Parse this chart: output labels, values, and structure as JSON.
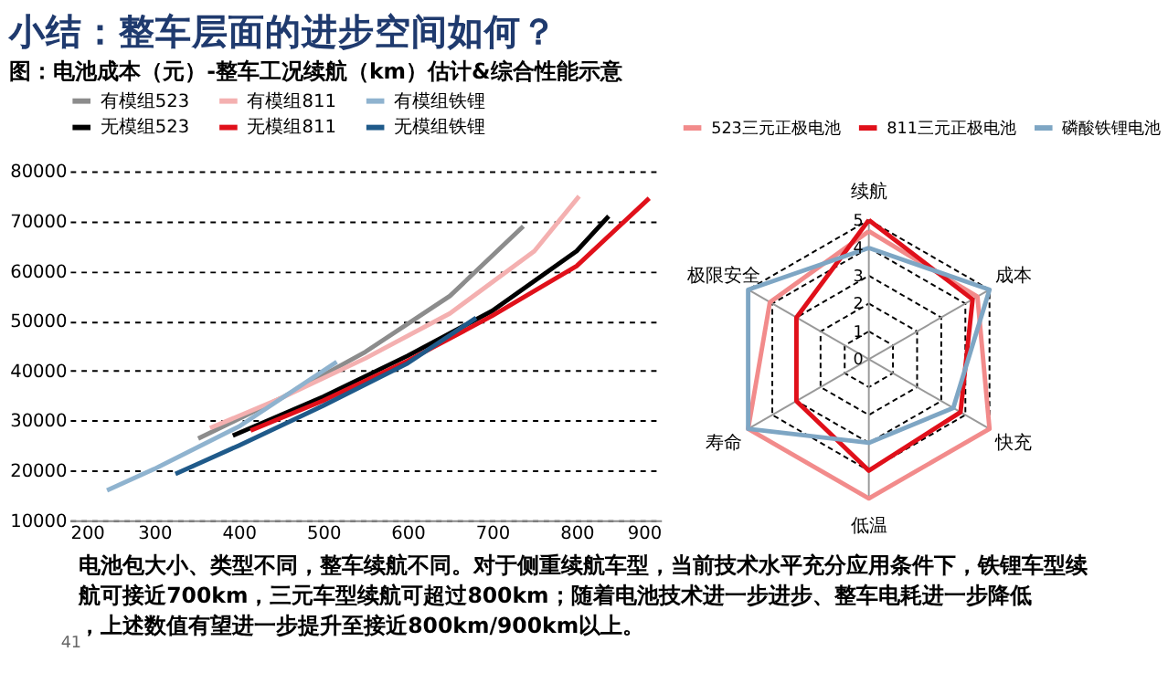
{
  "chart_data": [
    {
      "type": "line",
      "title": "小结：整车层面的进步空间如何？",
      "subtitle": "图：电池成本（元）-整车工况续航（km）估计&综合性能示意",
      "series": [
        {
          "name": "有模组523",
          "color": "#8c8c8c",
          "x": [
            352,
            450,
            550,
            650,
            737
          ],
          "values": [
            26400,
            34500,
            43800,
            55000,
            69000
          ]
        },
        {
          "name": "有模组811",
          "color": "#f4b0b0",
          "x": [
            366,
            450,
            550,
            650,
            750,
            803
          ],
          "values": [
            28500,
            34500,
            42500,
            51500,
            64000,
            75000
          ]
        },
        {
          "name": "有模组铁锂",
          "color": "#8fb3cf",
          "x": [
            244,
            300,
            400,
            516
          ],
          "values": [
            16000,
            20300,
            28800,
            41800
          ]
        },
        {
          "name": "无模组523",
          "color": "#000000",
          "x": [
            393,
            500,
            600,
            700,
            800,
            838
          ],
          "values": [
            27000,
            34800,
            43000,
            52000,
            64000,
            71000
          ]
        },
        {
          "name": "无模组811",
          "color": "#e0101a",
          "x": [
            414,
            500,
            600,
            700,
            800,
            886
          ],
          "values": [
            28000,
            34000,
            42000,
            51000,
            61000,
            74600
          ]
        },
        {
          "name": "无模组铁锂",
          "color": "#1f5a8a",
          "x": [
            325,
            400,
            500,
            600,
            681
          ],
          "values": [
            19300,
            25000,
            33000,
            41500,
            50600
          ]
        }
      ],
      "xlim": [
        200,
        900
      ],
      "xticks": [
        200,
        300,
        400,
        500,
        600,
        700,
        800,
        900
      ],
      "ylim": [
        10000,
        80000
      ],
      "yticks": [
        10000,
        20000,
        30000,
        40000,
        50000,
        60000,
        70000,
        80000
      ],
      "grid": "y",
      "legend": "top",
      "line_style": "solid",
      "marker": "none",
      "annotations": [
        "电池包大小、类型不同，整车续航不同。对于侧重续航车型，当前技术水平充分应用条件下，铁锂车型续航可接近700km，三元车型续航可超过800km；随着电池技术进一步进步、整车电耗进一步降低，上述数值有望进一步提升至接近800km/900km以上。",
        "41"
      ]
    },
    {
      "type": "radar",
      "categories": [
        "续航",
        "成本",
        "快充",
        "低温",
        "寿命",
        "极限安全"
      ],
      "series": [
        {
          "name": "523三元正极电池",
          "color": "#f28b8b",
          "values": [
            4.6,
            4.5,
            5,
            5,
            5,
            4.1
          ]
        },
        {
          "name": "811三元正极电池",
          "color": "#e0101a",
          "values": [
            5,
            4.3,
            3.8,
            4,
            3,
            3
          ]
        },
        {
          "name": "磷酸铁锂电池",
          "color": "#7ea6c4",
          "values": [
            4,
            5,
            3.5,
            3,
            5,
            5
          ]
        }
      ],
      "ylim": [
        0,
        5
      ],
      "yticks": [
        0,
        1,
        2,
        3,
        4,
        5
      ],
      "legend": "top",
      "grid": true
    }
  ]
}
